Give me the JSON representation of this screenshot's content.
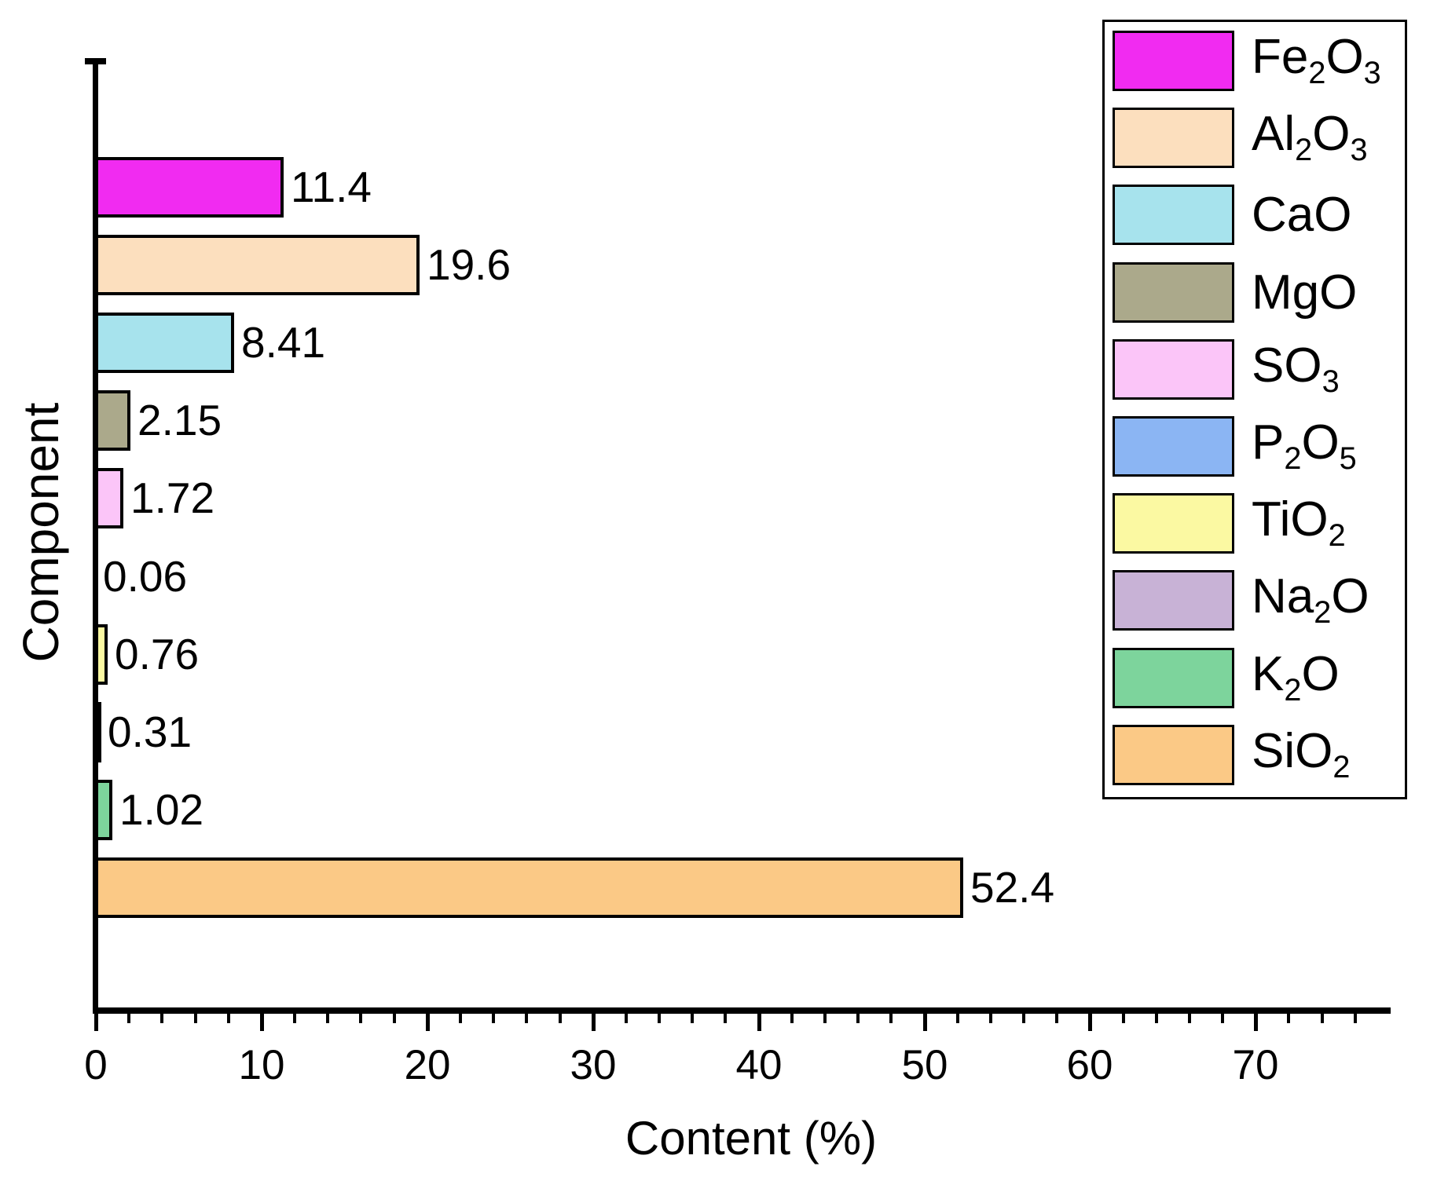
{
  "chart_data": {
    "type": "bar",
    "orientation": "horizontal",
    "xlabel": "Content (%)",
    "ylabel": "Component",
    "xlim": [
      0,
      78
    ],
    "x_major_ticks": [
      0,
      10,
      20,
      30,
      40,
      50,
      60,
      70
    ],
    "x_major_tick_labels": [
      "0",
      "10",
      "20",
      "30",
      "40",
      "50",
      "60",
      "70"
    ],
    "x_minor_tick_step": 2,
    "x_minor_tick_max": 76,
    "grid": false,
    "legend_position": "top-right",
    "categories": [
      "Fe2O3",
      "Al2O3",
      "CaO",
      "MgO",
      "SO3",
      "P2O5",
      "TiO2",
      "Na2O",
      "K2O",
      "SiO2"
    ],
    "series": [
      {
        "name": "Content (%)",
        "values": [
          11.4,
          19.6,
          8.41,
          2.15,
          1.72,
          0.06,
          0.76,
          0.31,
          1.02,
          52.4
        ]
      }
    ],
    "components": [
      {
        "id": "Fe2O3",
        "formula": [
          [
            "Fe",
            0
          ],
          [
            "2",
            1
          ],
          [
            "O",
            0
          ],
          [
            "3",
            1
          ]
        ],
        "value": 11.4,
        "value_label": "11.4",
        "color": "#F12BF1"
      },
      {
        "id": "Al2O3",
        "formula": [
          [
            "Al",
            0
          ],
          [
            "2",
            1
          ],
          [
            "O",
            0
          ],
          [
            "3",
            1
          ]
        ],
        "value": 19.6,
        "value_label": "19.6",
        "color": "#FCDFBE"
      },
      {
        "id": "CaO",
        "formula": [
          [
            "CaO",
            0
          ]
        ],
        "value": 8.41,
        "value_label": "8.41",
        "color": "#A7E3ED"
      },
      {
        "id": "MgO",
        "formula": [
          [
            "MgO",
            0
          ]
        ],
        "value": 2.15,
        "value_label": "2.15",
        "color": "#ABA98B"
      },
      {
        "id": "SO3",
        "formula": [
          [
            "SO",
            0
          ],
          [
            "3",
            1
          ]
        ],
        "value": 1.72,
        "value_label": "1.72",
        "color": "#FBC5F8"
      },
      {
        "id": "P2O5",
        "formula": [
          [
            "P",
            0
          ],
          [
            "2",
            1
          ],
          [
            "O",
            0
          ],
          [
            "5",
            1
          ]
        ],
        "value": 0.06,
        "value_label": "0.06",
        "color": "#8BB5F3"
      },
      {
        "id": "TiO2",
        "formula": [
          [
            "TiO",
            0
          ],
          [
            "2",
            1
          ]
        ],
        "value": 0.76,
        "value_label": "0.76",
        "color": "#FBF9A2"
      },
      {
        "id": "Na2O",
        "formula": [
          [
            "Na",
            0
          ],
          [
            "2",
            1
          ],
          [
            "O",
            0
          ]
        ],
        "value": 0.31,
        "value_label": "0.31",
        "color": "#C8B2D6"
      },
      {
        "id": "K2O",
        "formula": [
          [
            "K",
            0
          ],
          [
            "2",
            1
          ],
          [
            "O",
            0
          ]
        ],
        "value": 1.02,
        "value_label": "1.02",
        "color": "#7DD49C"
      },
      {
        "id": "SiO2",
        "formula": [
          [
            "SiO",
            0
          ],
          [
            "2",
            1
          ]
        ],
        "value": 52.4,
        "value_label": "52.4",
        "color": "#FBC986"
      }
    ],
    "axis_color": "#000000",
    "text_color": "#000000"
  }
}
